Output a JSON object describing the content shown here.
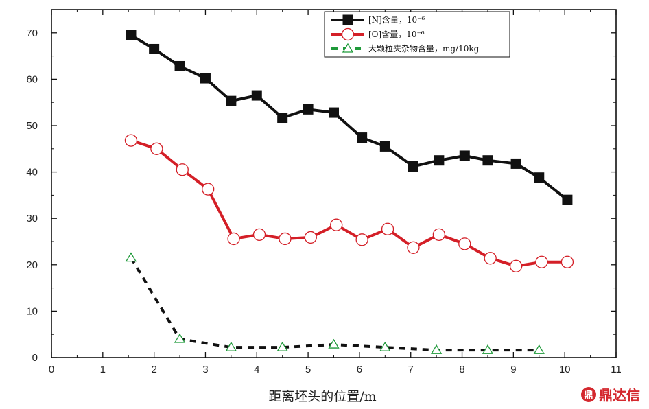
{
  "chart_data": {
    "type": "line",
    "xlabel": "距离坯头的位置/m",
    "ylabel": "",
    "xlim": [
      0,
      11
    ],
    "ylim": [
      0,
      75
    ],
    "xticks": [
      "0",
      "1",
      "2",
      "3",
      "4",
      "5",
      "6",
      "7",
      "8",
      "9",
      "10",
      "11"
    ],
    "yticks": [
      "0",
      "10",
      "20",
      "30",
      "40",
      "50",
      "60",
      "70"
    ],
    "grid": false,
    "legend_position": "top-right",
    "series": [
      {
        "name": "[N]含量，10⁻⁶",
        "color": "#111111",
        "marker": "square",
        "line": "solid",
        "x": [
          1.55,
          2.0,
          2.5,
          3.0,
          3.5,
          4.0,
          4.5,
          5.0,
          5.5,
          6.05,
          6.5,
          7.05,
          7.55,
          8.05,
          8.5,
          9.05,
          9.5,
          10.05
        ],
        "y": [
          69.5,
          66.5,
          62.8,
          60.2,
          55.3,
          56.5,
          51.7,
          53.5,
          52.8,
          47.4,
          45.5,
          41.2,
          42.5,
          43.5,
          42.5,
          41.8,
          38.8,
          34.0
        ]
      },
      {
        "name": "[O]含量，10⁻⁶",
        "color": "#d41f27",
        "marker": "circle",
        "line": "solid",
        "x": [
          1.55,
          2.05,
          2.55,
          3.05,
          3.55,
          4.05,
          4.55,
          5.05,
          5.55,
          6.05,
          6.55,
          7.05,
          7.55,
          8.05,
          8.55,
          9.05,
          9.55,
          10.05
        ],
        "y": [
          46.8,
          45.0,
          40.5,
          36.3,
          25.6,
          26.5,
          25.6,
          25.9,
          28.6,
          25.4,
          27.7,
          23.7,
          26.5,
          24.5,
          21.4,
          19.7,
          20.6,
          20.6
        ]
      },
      {
        "name": "大颗粒夹杂物含量，mg/10kg",
        "color": "#111111",
        "marker_color": "#1f9a3a",
        "marker": "triangle",
        "line": "dashed",
        "x": [
          1.55,
          2.5,
          3.5,
          4.5,
          5.5,
          6.5,
          7.5,
          8.5,
          9.5
        ],
        "y": [
          21.5,
          4.0,
          2.2,
          2.2,
          2.8,
          2.2,
          1.6,
          1.6,
          1.6
        ]
      }
    ]
  },
  "watermark": {
    "logo": "鼎达信",
    "text": "鼎达信"
  }
}
